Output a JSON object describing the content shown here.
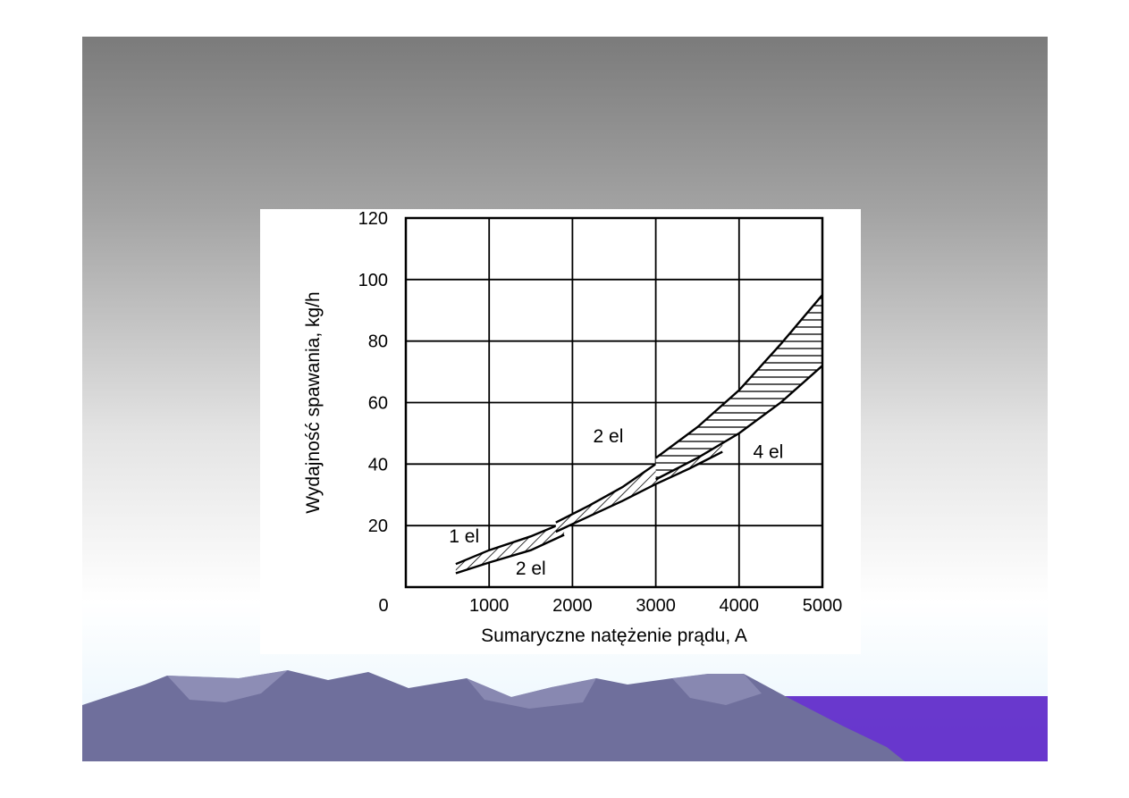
{
  "colors": {
    "slide_top": "#7b7b7b",
    "slide_bottom": "#e6f4fd",
    "mountain": "#6f6f9c",
    "mountain_light": "#9a9ac0",
    "accent_purple": "#5a22c8"
  },
  "chart_data": {
    "type": "area",
    "xlabel": "Sumaryczne natężenie prądu, A",
    "ylabel": "Wydajność spawania, kg/h",
    "xlim": [
      0,
      5000
    ],
    "ylim": [
      0,
      120
    ],
    "x_ticks": [
      0,
      1000,
      2000,
      3000,
      4000,
      5000
    ],
    "y_ticks": [
      20,
      40,
      60,
      80,
      100,
      120
    ],
    "x_tick_labels": [
      "1000",
      "2000",
      "3000",
      "4000",
      "5000"
    ],
    "y_tick_labels": [
      "20",
      "40",
      "60",
      "80",
      "100",
      "120"
    ],
    "origin_label": "0",
    "grid": true,
    "series": [
      {
        "name": "1 el",
        "upper": [
          [
            600,
            7.5
          ],
          [
            1000,
            12
          ],
          [
            1500,
            16.5
          ],
          [
            1900,
            21
          ]
        ],
        "lower": [
          [
            600,
            4.5
          ],
          [
            1000,
            8
          ],
          [
            1500,
            12
          ],
          [
            1900,
            17
          ]
        ],
        "hatch": "diagonal"
      },
      {
        "name": "2 el",
        "upper": [
          [
            1800,
            21
          ],
          [
            2200,
            26.5
          ],
          [
            2600,
            32.5
          ],
          [
            3000,
            40
          ],
          [
            3400,
            46
          ],
          [
            3800,
            54
          ]
        ],
        "lower": [
          [
            1800,
            18
          ],
          [
            2200,
            23
          ],
          [
            2600,
            28
          ],
          [
            3000,
            33.5
          ],
          [
            3400,
            38.5
          ],
          [
            3800,
            44
          ]
        ],
        "hatch": "diagonal"
      },
      {
        "name": "4 el",
        "upper": [
          [
            3000,
            42
          ],
          [
            3500,
            52
          ],
          [
            4000,
            64
          ],
          [
            4500,
            79
          ],
          [
            5000,
            95
          ]
        ],
        "lower": [
          [
            3000,
            35
          ],
          [
            3500,
            42
          ],
          [
            4000,
            50
          ],
          [
            4500,
            60
          ],
          [
            5000,
            72
          ]
        ],
        "hatch": "horizontal"
      }
    ],
    "annotations": [
      {
        "text": "1 el",
        "x": 700,
        "y": 14.5
      },
      {
        "text": "2 el",
        "x": 1500,
        "y": 4
      },
      {
        "text": "2 el",
        "x": 2430,
        "y": 47
      },
      {
        "text": "4 el",
        "x": 4350,
        "y": 42
      }
    ]
  }
}
